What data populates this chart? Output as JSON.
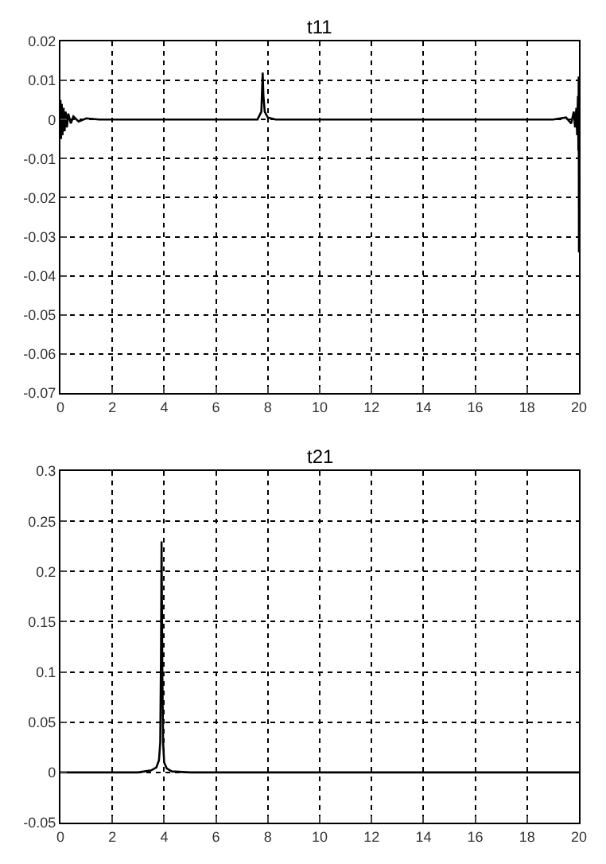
{
  "chart_data": [
    {
      "type": "line",
      "title": "t11",
      "x": [
        0,
        0.02,
        0.05,
        0.08,
        0.12,
        0.16,
        0.2,
        0.25,
        0.3,
        0.4,
        0.5,
        0.7,
        1,
        1.5,
        3,
        5,
        7,
        7.6,
        7.75,
        7.8,
        7.83,
        7.88,
        8,
        8.3,
        10,
        12,
        14,
        16,
        18,
        19,
        19.5,
        19.7,
        19.8,
        19.85,
        19.9,
        19.93,
        19.96,
        19.98,
        19.99,
        20
      ],
      "series": [
        {
          "color": "#000000",
          "values": [
            0.005,
            -0.005,
            0.004,
            -0.004,
            0.003,
            -0.003,
            0.002,
            -0.002,
            0.0015,
            -0.001,
            0.0008,
            -0.0005,
            0.0003,
            0,
            0,
            0,
            0,
            0,
            0.002,
            0.012,
            0.006,
            0.002,
            0.0005,
            0,
            0,
            0,
            0,
            0,
            0,
            0,
            0.0005,
            -0.001,
            0.002,
            -0.002,
            0.003,
            -0.004,
            0.006,
            -0.008,
            0.011,
            -0.034
          ]
        }
      ],
      "xlim": [
        0,
        20
      ],
      "xticks": [
        0,
        2,
        4,
        6,
        8,
        10,
        12,
        14,
        16,
        18,
        20
      ],
      "ylim": [
        -0.07,
        0.02
      ],
      "yticks": [
        -0.07,
        -0.06,
        -0.05,
        -0.04,
        -0.03,
        -0.02,
        -0.01,
        0,
        0.01,
        0.02
      ],
      "grid": true,
      "line_style": "solid"
    },
    {
      "type": "line",
      "title": "t21",
      "x": [
        0,
        2,
        3,
        3.5,
        3.7,
        3.8,
        3.85,
        3.88,
        3.9,
        3.93,
        3.96,
        4.0,
        4.1,
        4.3,
        5,
        10,
        15,
        20
      ],
      "series": [
        {
          "color": "#000000",
          "values": [
            0,
            0,
            0,
            0.002,
            0.005,
            0.012,
            0.03,
            0.12,
            0.23,
            0.1,
            0.03,
            0.01,
            0.004,
            0.001,
            0,
            0,
            0,
            0
          ]
        }
      ],
      "xlim": [
        0,
        20
      ],
      "xticks": [
        0,
        2,
        4,
        6,
        8,
        10,
        12,
        14,
        16,
        18,
        20
      ],
      "ylim": [
        -0.05,
        0.3
      ],
      "yticks": [
        -0.05,
        0,
        0.05,
        0.1,
        0.15,
        0.2,
        0.25,
        0.3
      ],
      "grid": true,
      "line_style": "solid"
    }
  ]
}
